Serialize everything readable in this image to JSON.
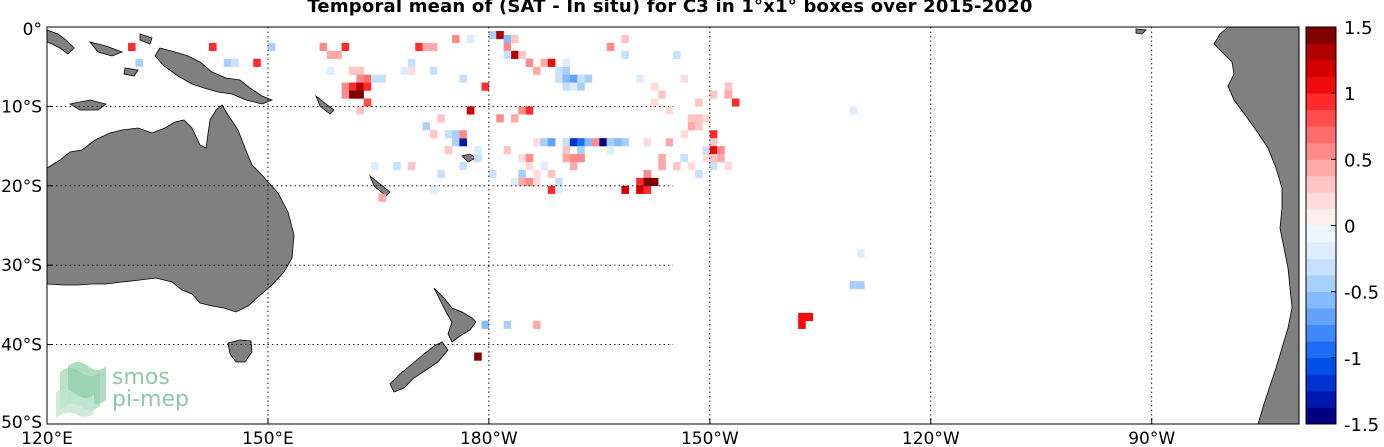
{
  "title": "Temporal mean of (SAT - In situ) for C3 in 1°x1° boxes over 2015-2020",
  "logo": {
    "line1": "smos",
    "line2": "pi-mep"
  },
  "chart_data": {
    "type": "heatmap",
    "x_ticks": [
      "120°E",
      "150°E",
      "180°W",
      "150°W",
      "120°W",
      "90°W"
    ],
    "y_ticks": [
      "0°",
      "10°S",
      "20°S",
      "30°S",
      "40°S",
      "50°S"
    ],
    "lon_range": [
      120,
      290
    ],
    "lat_range": [
      -50,
      0
    ],
    "grid": true,
    "colorbar": {
      "ticks": [
        "1.5",
        "1",
        "0.5",
        "0",
        "-0.5",
        "-1",
        "-1.5"
      ],
      "range": [
        -1.5,
        1.5
      ],
      "levels": 24,
      "colors_neg": [
        "#000080",
        "#0018b0",
        "#0032d0",
        "#0050e8",
        "#1c6cf4",
        "#3e88f8",
        "#62a2fa",
        "#86bafc",
        "#a8d0fd",
        "#c6e0fe",
        "#dceefe",
        "#eef6ff"
      ],
      "colors_pos": [
        "#ffeeee",
        "#ffdcdc",
        "#ffc4c4",
        "#ffa8a8",
        "#ff8a8a",
        "#ff6c6c",
        "#ff4c4c",
        "#ff2a2a",
        "#f00a0a",
        "#d40000",
        "#b00000",
        "#800000"
      ]
    },
    "cells": [
      {
        "lon": 131,
        "lat": -2,
        "v": 0.9
      },
      {
        "lon": 132,
        "lat": -4,
        "v": -0.5
      },
      {
        "lon": 142,
        "lat": -2,
        "v": 0.9
      },
      {
        "lon": 144,
        "lat": -4,
        "v": -0.4
      },
      {
        "lon": 145,
        "lat": -4,
        "v": -0.3
      },
      {
        "lon": 148,
        "lat": -4,
        "v": 0.9
      },
      {
        "lon": 150,
        "lat": -2,
        "v": -0.5
      },
      {
        "lon": 157,
        "lat": -2,
        "v": 0.5
      },
      {
        "lon": 158,
        "lat": -3,
        "v": 0.4
      },
      {
        "lon": 159,
        "lat": -3,
        "v": 0.4
      },
      {
        "lon": 160,
        "lat": -2,
        "v": 0.9
      },
      {
        "lon": 158,
        "lat": -5,
        "v": -0.2
      },
      {
        "lon": 161,
        "lat": -5,
        "v": 0.3
      },
      {
        "lon": 162,
        "lat": -5,
        "v": 0.3
      },
      {
        "lon": 162,
        "lat": -6,
        "v": 0.6
      },
      {
        "lon": 163,
        "lat": -6,
        "v": 0.7
      },
      {
        "lon": 164,
        "lat": -6,
        "v": -0.3
      },
      {
        "lon": 165,
        "lat": -6,
        "v": -0.3
      },
      {
        "lon": 160,
        "lat": -7,
        "v": 0.5
      },
      {
        "lon": 161,
        "lat": -7,
        "v": 0.9
      },
      {
        "lon": 162,
        "lat": -7,
        "v": 1.3
      },
      {
        "lon": 163,
        "lat": -7,
        "v": 0.9
      },
      {
        "lon": 161,
        "lat": -8,
        "v": 1.4
      },
      {
        "lon": 162,
        "lat": -8,
        "v": 1.4
      },
      {
        "lon": 160,
        "lat": -8,
        "v": 0.6
      },
      {
        "lon": 163,
        "lat": -9,
        "v": 0.8
      },
      {
        "lon": 162,
        "lat": -10,
        "v": 0.3
      },
      {
        "lon": 169,
        "lat": -4,
        "v": -0.3
      },
      {
        "lon": 168,
        "lat": -5,
        "v": -0.2
      },
      {
        "lon": 169,
        "lat": -5,
        "v": 0.2
      },
      {
        "lon": 172,
        "lat": -5,
        "v": -0.3
      },
      {
        "lon": 170,
        "lat": -2,
        "v": 0.9
      },
      {
        "lon": 171,
        "lat": -2,
        "v": 0.4
      },
      {
        "lon": 172,
        "lat": -2,
        "v": 0.4
      },
      {
        "lon": 175,
        "lat": -1,
        "v": 0.5
      },
      {
        "lon": 177,
        "lat": -1,
        "v": -0.2
      },
      {
        "lon": 176,
        "lat": -6,
        "v": -0.3
      },
      {
        "lon": 179,
        "lat": -7,
        "v": 0.9
      },
      {
        "lon": 180,
        "lat": -0.5,
        "v": -0.4
      },
      {
        "lon": 181,
        "lat": -0.5,
        "v": 1.3
      },
      {
        "lon": 182,
        "lat": -1,
        "v": -0.6
      },
      {
        "lon": 183,
        "lat": -1,
        "v": 0.3
      },
      {
        "lon": 182,
        "lat": -2,
        "v": 0.5
      },
      {
        "lon": 183,
        "lat": -3,
        "v": 1.3
      },
      {
        "lon": 182,
        "lat": -3,
        "v": -0.3
      },
      {
        "lon": 184,
        "lat": -3,
        "v": 0.3
      },
      {
        "lon": 185,
        "lat": -4,
        "v": 0.5
      },
      {
        "lon": 187,
        "lat": -4,
        "v": 0.4
      },
      {
        "lon": 188,
        "lat": -4,
        "v": 1.0
      },
      {
        "lon": 186,
        "lat": -5,
        "v": 0.4
      },
      {
        "lon": 189,
        "lat": -5,
        "v": -0.3
      },
      {
        "lon": 190,
        "lat": -5,
        "v": -0.5
      },
      {
        "lon": 189,
        "lat": -6,
        "v": -0.3
      },
      {
        "lon": 190,
        "lat": -6,
        "v": -0.6
      },
      {
        "lon": 191,
        "lat": -6,
        "v": -0.7
      },
      {
        "lon": 192,
        "lat": -6,
        "v": -0.3
      },
      {
        "lon": 193,
        "lat": -6,
        "v": -0.4
      },
      {
        "lon": 190,
        "lat": -7,
        "v": -0.3
      },
      {
        "lon": 191,
        "lat": -7,
        "v": -0.2
      },
      {
        "lon": 192,
        "lat": -7,
        "v": -0.4
      },
      {
        "lon": 190,
        "lat": -4,
        "v": -0.2
      },
      {
        "lon": 196,
        "lat": -2,
        "v": 0.5
      },
      {
        "lon": 198,
        "lat": -1,
        "v": 0.3
      },
      {
        "lon": 198,
        "lat": -3,
        "v": -0.3
      },
      {
        "lon": 200,
        "lat": -6,
        "v": -0.2
      },
      {
        "lon": 202,
        "lat": -7,
        "v": 0.2
      },
      {
        "lon": 205,
        "lat": -3,
        "v": -0.3
      },
      {
        "lon": 206,
        "lat": -6,
        "v": 0.2
      },
      {
        "lon": 212,
        "lat": -7,
        "v": 0.3
      },
      {
        "lon": 212,
        "lat": -8,
        "v": 0.4
      },
      {
        "lon": 213,
        "lat": -9,
        "v": 0.9
      },
      {
        "lon": 210,
        "lat": -8,
        "v": 0.3
      },
      {
        "lon": 208,
        "lat": -9,
        "v": 0.3
      },
      {
        "lon": 203,
        "lat": -8,
        "v": 0.3
      },
      {
        "lon": 202,
        "lat": -9,
        "v": 0.2
      },
      {
        "lon": 204,
        "lat": -10,
        "v": 0.2
      },
      {
        "lon": 207,
        "lat": -11,
        "v": 0.3
      },
      {
        "lon": 208,
        "lat": -11,
        "v": 0.3
      },
      {
        "lon": 209,
        "lat": -11,
        "v": 0.2
      },
      {
        "lon": 207,
        "lat": -12,
        "v": 0.4
      },
      {
        "lon": 208,
        "lat": -12,
        "v": 0.3
      },
      {
        "lon": 206,
        "lat": -13,
        "v": 0.2
      },
      {
        "lon": 204,
        "lat": -14,
        "v": 0.4
      },
      {
        "lon": 201,
        "lat": -14,
        "v": 0.2
      },
      {
        "lon": 181,
        "lat": -11,
        "v": 0.5
      },
      {
        "lon": 183,
        "lat": -11,
        "v": 0.4
      },
      {
        "lon": 184,
        "lat": -10,
        "v": 0.6
      },
      {
        "lon": 185,
        "lat": -10,
        "v": 0.9
      },
      {
        "lon": 177,
        "lat": -10,
        "v": 1.2
      },
      {
        "lon": 173,
        "lat": -11,
        "v": 0.3
      },
      {
        "lon": 172,
        "lat": -13,
        "v": 0.3
      },
      {
        "lon": 174,
        "lat": -13,
        "v": -0.3
      },
      {
        "lon": 175,
        "lat": -13,
        "v": -0.5
      },
      {
        "lon": 175,
        "lat": -14,
        "v": -0.4
      },
      {
        "lon": 176,
        "lat": -14,
        "v": -1.3
      },
      {
        "lon": 176,
        "lat": -13,
        "v": 0.6
      },
      {
        "lon": 174,
        "lat": -15,
        "v": 0.3
      },
      {
        "lon": 171,
        "lat": -12,
        "v": -0.4
      },
      {
        "lon": 178,
        "lat": -15,
        "v": -0.2
      },
      {
        "lon": 178,
        "lat": -16,
        "v": -0.3
      },
      {
        "lon": 182,
        "lat": -15,
        "v": 0.3
      },
      {
        "lon": 186,
        "lat": -14,
        "v": 0.2
      },
      {
        "lon": 187,
        "lat": -14,
        "v": -0.4
      },
      {
        "lon": 188,
        "lat": -14,
        "v": -0.7
      },
      {
        "lon": 190,
        "lat": -14,
        "v": -0.3
      },
      {
        "lon": 191,
        "lat": -14,
        "v": -1.2
      },
      {
        "lon": 192,
        "lat": -14,
        "v": -0.9
      },
      {
        "lon": 193,
        "lat": -14,
        "v": -0.6
      },
      {
        "lon": 194,
        "lat": -14,
        "v": 0.5
      },
      {
        "lon": 195,
        "lat": -14,
        "v": -1.4
      },
      {
        "lon": 196,
        "lat": -14,
        "v": -0.5
      },
      {
        "lon": 197,
        "lat": -14,
        "v": -0.6
      },
      {
        "lon": 198,
        "lat": -14,
        "v": -0.4
      },
      {
        "lon": 190,
        "lat": -15,
        "v": 0.3
      },
      {
        "lon": 192,
        "lat": -15,
        "v": -0.5
      },
      {
        "lon": 196,
        "lat": -15,
        "v": -0.2
      },
      {
        "lon": 190,
        "lat": -16,
        "v": 0.4
      },
      {
        "lon": 184,
        "lat": -16,
        "v": 0.2
      },
      {
        "lon": 185,
        "lat": -16,
        "v": 0.6
      },
      {
        "lon": 191,
        "lat": -16,
        "v": 0.6
      },
      {
        "lon": 192,
        "lat": -16,
        "v": 0.6
      },
      {
        "lon": 185,
        "lat": -17,
        "v": 0.2
      },
      {
        "lon": 187,
        "lat": -17,
        "v": -0.2
      },
      {
        "lon": 191,
        "lat": -17,
        "v": 0.4
      },
      {
        "lon": 188,
        "lat": -18,
        "v": 0.3
      },
      {
        "lon": 186,
        "lat": -18,
        "v": 0.2
      },
      {
        "lon": 184,
        "lat": -18,
        "v": -0.4
      },
      {
        "lon": 180,
        "lat": -18,
        "v": -0.3
      },
      {
        "lon": 183,
        "lat": -19,
        "v": -0.2
      },
      {
        "lon": 184,
        "lat": -19,
        "v": 0.4
      },
      {
        "lon": 185,
        "lat": -19,
        "v": 0.5
      },
      {
        "lon": 186,
        "lat": -19,
        "v": 0.2
      },
      {
        "lon": 189,
        "lat": -19,
        "v": -0.3
      },
      {
        "lon": 188,
        "lat": -20,
        "v": 0.9
      },
      {
        "lon": 189,
        "lat": -20,
        "v": -0.2
      },
      {
        "lon": 176,
        "lat": -17,
        "v": -0.3
      },
      {
        "lon": 173,
        "lat": -18,
        "v": -0.3
      },
      {
        "lon": 172,
        "lat": -20,
        "v": -0.2
      },
      {
        "lon": 169,
        "lat": -17,
        "v": 0.3
      },
      {
        "lon": 167,
        "lat": -17,
        "v": -0.3
      },
      {
        "lon": 165,
        "lat": -21,
        "v": 0.4
      },
      {
        "lon": 164,
        "lat": -17,
        "v": -0.2
      },
      {
        "lon": 203,
        "lat": -16,
        "v": 0.4
      },
      {
        "lon": 203,
        "lat": -17,
        "v": 0.4
      },
      {
        "lon": 205,
        "lat": -17,
        "v": 0.3
      },
      {
        "lon": 206,
        "lat": -16,
        "v": -0.3
      },
      {
        "lon": 207,
        "lat": -17,
        "v": 0.2
      },
      {
        "lon": 201,
        "lat": -18,
        "v": 0.5
      },
      {
        "lon": 200,
        "lat": -19,
        "v": 0.9
      },
      {
        "lon": 200,
        "lat": -20,
        "v": 1.2
      },
      {
        "lon": 198,
        "lat": -20,
        "v": 1.2
      },
      {
        "lon": 201,
        "lat": -19,
        "v": 1.4
      },
      {
        "lon": 202,
        "lat": -19,
        "v": 1.4
      },
      {
        "lon": 201,
        "lat": -20,
        "v": 0.9
      },
      {
        "lon": 210,
        "lat": -13,
        "v": 0.9
      },
      {
        "lon": 210,
        "lat": -14,
        "v": 0.3
      },
      {
        "lon": 210,
        "lat": -15,
        "v": 1.0
      },
      {
        "lon": 211,
        "lat": -15,
        "v": 0.5
      },
      {
        "lon": 209,
        "lat": -15,
        "v": -0.3
      },
      {
        "lon": 210,
        "lat": -16,
        "v": 0.3
      },
      {
        "lon": 209,
        "lat": -16,
        "v": 0.2
      },
      {
        "lon": 210,
        "lat": -17,
        "v": -0.3
      },
      {
        "lon": 211,
        "lat": -16,
        "v": 0.4
      },
      {
        "lon": 212,
        "lat": -17,
        "v": 0.2
      },
      {
        "lon": 208,
        "lat": -18,
        "v": -0.3
      },
      {
        "lon": 229,
        "lat": -10,
        "v": -0.2
      },
      {
        "lon": 230,
        "lat": -28,
        "v": -0.2
      },
      {
        "lon": 229,
        "lat": -32,
        "v": -0.5
      },
      {
        "lon": 230,
        "lat": -32,
        "v": -0.4
      },
      {
        "lon": 222,
        "lat": -36,
        "v": 1.0
      },
      {
        "lon": 223,
        "lat": -36,
        "v": 1.0
      },
      {
        "lon": 222,
        "lat": -37,
        "v": 1.0
      },
      {
        "lon": 179,
        "lat": -37,
        "v": -0.6
      },
      {
        "lon": 182,
        "lat": -37,
        "v": -0.4
      },
      {
        "lon": 186,
        "lat": -37,
        "v": 0.4
      },
      {
        "lon": 178,
        "lat": -41,
        "v": 1.4
      }
    ]
  }
}
